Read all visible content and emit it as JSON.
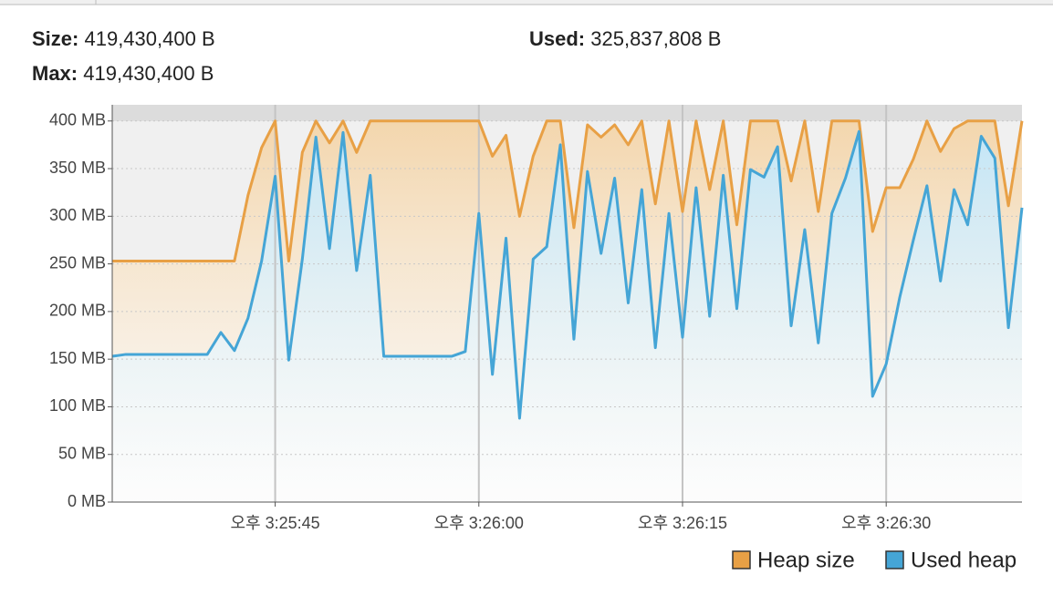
{
  "header": {
    "size": {
      "label": "Size:",
      "value": "419,430,400 B"
    },
    "max": {
      "label": "Max:",
      "value": "419,430,400 B"
    },
    "used": {
      "label": "Used:",
      "value": "325,837,808 B"
    }
  },
  "chart_data": {
    "type": "area",
    "x": [
      "3:25:33",
      "3:25:34",
      "3:25:35",
      "3:25:36",
      "3:25:37",
      "3:25:38",
      "3:25:39",
      "3:25:40",
      "3:25:41",
      "3:25:42",
      "3:25:43",
      "3:25:44",
      "3:25:45",
      "3:25:46",
      "3:25:47",
      "3:25:48",
      "3:25:49",
      "3:25:50",
      "3:25:51",
      "3:25:52",
      "3:25:53",
      "3:25:54",
      "3:25:55",
      "3:25:56",
      "3:25:57",
      "3:25:58",
      "3:25:59",
      "3:26:00",
      "3:26:01",
      "3:26:02",
      "3:26:03",
      "3:26:04",
      "3:26:05",
      "3:26:06",
      "3:26:07",
      "3:26:08",
      "3:26:09",
      "3:26:10",
      "3:26:11",
      "3:26:12",
      "3:26:13",
      "3:26:14",
      "3:26:15",
      "3:26:16",
      "3:26:17",
      "3:26:18",
      "3:26:19",
      "3:26:20",
      "3:26:21",
      "3:26:22",
      "3:26:23",
      "3:26:24",
      "3:26:25",
      "3:26:26",
      "3:26:27",
      "3:26:28",
      "3:26:29",
      "3:26:30",
      "3:26:31",
      "3:26:32",
      "3:26:33",
      "3:26:34",
      "3:26:35",
      "3:26:36",
      "3:26:37",
      "3:26:38",
      "3:26:39",
      "3:26:40"
    ],
    "series": [
      {
        "name": "Heap size",
        "color": "#e8a045",
        "fill": "#f3d6ad",
        "values": [
          253,
          253,
          253,
          253,
          253,
          253,
          253,
          253,
          253,
          253,
          322,
          372,
          400,
          253,
          367,
          400,
          377,
          400,
          367,
          400,
          400,
          400,
          400,
          400,
          400,
          400,
          400,
          400,
          363,
          385,
          300,
          363,
          400,
          400,
          288,
          396,
          383,
          396,
          375,
          400,
          313,
          400,
          305,
          400,
          328,
          400,
          291,
          400,
          400,
          400,
          337,
          400,
          305,
          400,
          400,
          400,
          284,
          330,
          330,
          360,
          400,
          368,
          392,
          400,
          400,
          400,
          311,
          400
        ]
      },
      {
        "name": "Used heap",
        "color": "#45a5d6",
        "fill": "#c4e6f7",
        "values": [
          153,
          155,
          155,
          155,
          155,
          155,
          155,
          155,
          178,
          159,
          193,
          253,
          342,
          149,
          255,
          383,
          266,
          388,
          243,
          343,
          153,
          153,
          153,
          153,
          153,
          153,
          158,
          303,
          134,
          277,
          88,
          255,
          268,
          375,
          171,
          347,
          261,
          340,
          209,
          328,
          162,
          303,
          173,
          330,
          195,
          343,
          203,
          349,
          341,
          373,
          185,
          286,
          167,
          303,
          340,
          389,
          111,
          145,
          215,
          275,
          332,
          232,
          328,
          291,
          384,
          361,
          183,
          309
        ]
      }
    ],
    "xlim": [
      "3:25:33",
      "3:26:40"
    ],
    "xticks": [
      {
        "value": "3:25:45",
        "label": "오후 3:25:45"
      },
      {
        "value": "3:26:00",
        "label": "오후 3:26:00"
      },
      {
        "value": "3:26:15",
        "label": "오후 3:26:15"
      },
      {
        "value": "3:26:30",
        "label": "오후 3:26:30"
      }
    ],
    "ylim": [
      0,
      417
    ],
    "yticks": [
      {
        "value": 0,
        "label": "0 MB"
      },
      {
        "value": 50,
        "label": "50 MB"
      },
      {
        "value": 100,
        "label": "100 MB"
      },
      {
        "value": 150,
        "label": "150 MB"
      },
      {
        "value": 200,
        "label": "200 MB"
      },
      {
        "value": 250,
        "label": "250 MB"
      },
      {
        "value": 300,
        "label": "300 MB"
      },
      {
        "value": 350,
        "label": "350 MB"
      },
      {
        "value": 400,
        "label": "400 MB"
      }
    ],
    "grid": true,
    "legend": "bottom-right"
  }
}
